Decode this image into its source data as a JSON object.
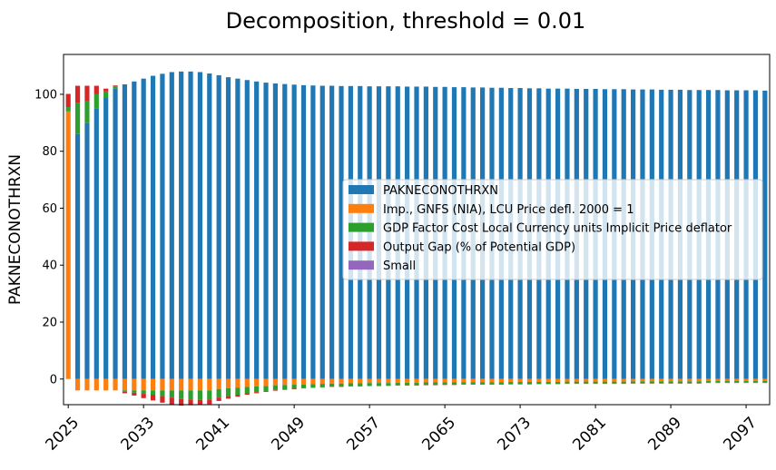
{
  "chart_data": {
    "type": "bar",
    "stacked": true,
    "title": "Decomposition, threshold = 0.01",
    "ylabel": "PAKNECONOTHRXN",
    "xlabel": "",
    "x_start": 2025,
    "x_end": 2099,
    "xtick_labels": [
      "2025",
      "2033",
      "2041",
      "2049",
      "2057",
      "2065",
      "2073",
      "2081",
      "2089",
      "2097"
    ],
    "yticks": [
      0,
      20,
      40,
      60,
      80,
      100
    ],
    "ylim": [
      -9,
      114
    ],
    "legend_position": "center-right",
    "series": [
      {
        "name": "PAKNECONOTHRXN",
        "color": "#1f77b4"
      },
      {
        "name": "Imp., GNFS (NIA), LCU Price defl. 2000 = 1",
        "color": "#ff7f0e"
      },
      {
        "name": "GDP Factor Cost Local Currency units Implicit Price deflator",
        "color": "#2ca02c"
      },
      {
        "name": "Output Gap (% of Potential GDP)",
        "color": "#d62728"
      },
      {
        "name": "Small",
        "color": "#9467bd"
      }
    ],
    "values_per_year": {
      "PAKNECONOTHRXN": [
        0,
        86,
        90,
        95,
        99,
        102,
        103.5,
        104.5,
        105.5,
        106.5,
        107.2,
        107.8,
        108,
        108,
        107.8,
        107.3,
        106.7,
        106,
        105.5,
        105,
        104.5,
        104.1,
        103.8,
        103.6,
        103.4,
        103.2,
        103.1,
        103,
        103,
        102.9,
        102.9,
        102.9,
        102.8,
        102.8,
        102.8,
        102.8,
        102.7,
        102.7,
        102.7,
        102.6,
        102.6,
        102.5,
        102.5,
        102.4,
        102.4,
        102.3,
        102.3,
        102.2,
        102.2,
        102.1,
        102.1,
        102,
        102,
        102,
        101.9,
        101.9,
        101.9,
        101.8,
        101.8,
        101.8,
        101.7,
        101.7,
        101.7,
        101.6,
        101.6,
        101.6,
        101.5,
        101.5,
        101.5,
        101.5,
        101.4,
        101.4,
        101.4,
        101.4,
        101.3
      ],
      "Imp_GNFS": [
        94,
        -4,
        -4,
        -4,
        -4,
        -4,
        -4,
        -4,
        -4,
        -4,
        -4,
        -4,
        -4,
        -4,
        -4,
        -4,
        -3.5,
        -3.2,
        -3,
        -2.8,
        -2.6,
        -2.4,
        -2.2,
        -2.1,
        -2,
        -1.9,
        -1.8,
        -1.7,
        -1.6,
        -1.6,
        -1.5,
        -1.5,
        -1.4,
        -1.4,
        -1.4,
        -1.3,
        -1.3,
        -1.3,
        -1.2,
        -1.2,
        -1.2,
        -1.2,
        -1.1,
        -1.1,
        -1.1,
        -1.1,
        -1.1,
        -1,
        -1,
        -1,
        -1,
        -1,
        -1,
        -0.9,
        -0.9,
        -0.9,
        -0.9,
        -0.9,
        -0.9,
        -0.9,
        -0.8,
        -0.8,
        -0.8,
        -0.8,
        -0.8,
        -0.8,
        -0.8,
        -0.8,
        -0.7,
        -0.7,
        -0.7,
        -0.7,
        -0.7,
        -0.7,
        -0.7
      ],
      "GDP_FactorCost_Deflator": [
        1.5,
        11,
        7.5,
        5,
        2,
        0.8,
        -0.5,
        -0.8,
        -1.2,
        -1.5,
        -2,
        -2.5,
        -3,
        -3.2,
        -3.3,
        -3.2,
        -3,
        -2.8,
        -2.5,
        -2.2,
        -2,
        -1.8,
        -1.6,
        -1.5,
        -1.4,
        -1.3,
        -1.2,
        -1.2,
        -1.1,
        -1.1,
        -1,
        -1,
        -1,
        -1,
        -0.9,
        -0.9,
        -0.9,
        -0.9,
        -0.9,
        -0.9,
        -0.8,
        -0.8,
        -0.8,
        -0.8,
        -0.8,
        -0.8,
        -0.8,
        -0.8,
        -0.8,
        -0.8,
        -0.7,
        -0.7,
        -0.7,
        -0.7,
        -0.7,
        -0.7,
        -0.7,
        -0.7,
        -0.7,
        -0.7,
        -0.7,
        -0.7,
        -0.7,
        -0.7,
        -0.7,
        -0.7,
        -0.7,
        -0.7,
        -0.6,
        -0.6,
        -0.6,
        -0.6,
        -0.6,
        -0.6,
        -0.6
      ],
      "Output_Gap": [
        4.5,
        6,
        5.5,
        3,
        1,
        0.3,
        -0.5,
        -1,
        -1.5,
        -2,
        -2.3,
        -2.5,
        -2.3,
        -2,
        -1.8,
        -1.6,
        -1.2,
        -0.9,
        -0.7,
        -0.5,
        -0.4,
        -0.3,
        -0.3,
        -0.2,
        -0.2,
        -0.1,
        -0.1,
        -0.1,
        -0.1,
        -0.1,
        -0.1,
        -0.1,
        -0.1,
        -0.1,
        -0.1,
        -0.1,
        -0.1,
        -0.1,
        -0.1,
        -0.1,
        -0.1,
        -0.1,
        -0.1,
        -0.1,
        -0.1,
        -0.1,
        -0.1,
        -0.1,
        -0.1,
        -0.1,
        -0.1,
        -0.1,
        -0.1,
        -0.1,
        -0.1,
        -0.1,
        -0.1,
        -0.1,
        -0.1,
        -0.1,
        -0.1,
        -0.1,
        -0.1,
        -0.1,
        -0.1,
        -0.1,
        -0.1,
        -0.1,
        -0.1,
        -0.1,
        -0.1,
        -0.1,
        -0.1,
        -0.1,
        -0.1
      ],
      "Small": [
        0.2,
        0,
        0,
        0,
        0,
        0,
        0,
        0,
        0,
        0,
        0,
        0,
        0,
        0,
        0,
        0,
        0,
        0,
        0,
        0,
        0,
        0,
        0,
        0,
        0,
        0,
        0,
        0,
        0,
        0,
        0,
        0,
        0,
        0,
        0,
        0,
        0,
        0,
        0,
        0,
        0,
        0,
        0,
        0,
        0,
        0,
        0,
        0,
        0,
        0,
        0,
        0,
        0,
        0,
        0,
        0,
        0,
        0,
        0,
        0,
        0,
        0,
        0,
        0,
        0,
        0,
        0,
        0,
        0,
        0,
        0,
        0,
        0,
        0,
        0
      ]
    }
  }
}
